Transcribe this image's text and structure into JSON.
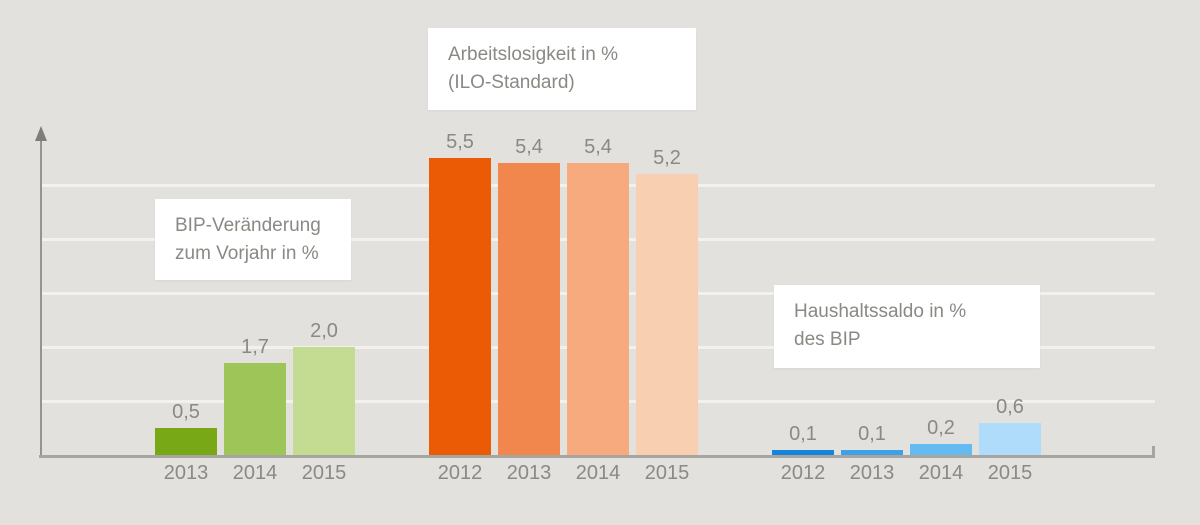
{
  "chart_data": {
    "type": "bar",
    "title": "",
    "xlabel": "",
    "ylabel": "",
    "ylim": [
      0,
      6
    ],
    "grid": {
      "visible": true,
      "step": 1,
      "lines_at": [
        1,
        2,
        3,
        4,
        5
      ]
    },
    "legend_position": "none",
    "groups": [
      {
        "id": "bip",
        "annotation": "BIP-Veränderung\nzum Vorjahr in %",
        "categories": [
          "2013",
          "2014",
          "2015"
        ],
        "values": [
          0.5,
          1.7,
          2.0
        ],
        "display_values": [
          "0,5",
          "1,7",
          "2,0"
        ],
        "bar_colors": [
          "#78a816",
          "#9dc558",
          "#c3dc92"
        ]
      },
      {
        "id": "arbeitslosigkeit",
        "annotation": "Arbeitslosigkeit in %\n(ILO-Standard)",
        "categories": [
          "2012",
          "2013",
          "2014",
          "2015"
        ],
        "values": [
          5.5,
          5.4,
          5.4,
          5.2
        ],
        "display_values": [
          "5,5",
          "5,4",
          "5,4",
          "5,2"
        ],
        "bar_colors": [
          "#eb5b06",
          "#f1874d",
          "#f6aa7d",
          "#f9cfb2"
        ]
      },
      {
        "id": "haushaltssaldo",
        "annotation": "Haushaltssaldo in %\ndes BIP",
        "categories": [
          "2012",
          "2013",
          "2014",
          "2015"
        ],
        "values": [
          0.1,
          0.1,
          0.2,
          0.6
        ],
        "display_values": [
          "0,1",
          "0,1",
          "0,2",
          "0,6"
        ],
        "bar_colors": [
          "#1585dc",
          "#3ba1e8",
          "#63bbf2",
          "#aedcfa"
        ]
      }
    ]
  },
  "colors": {
    "background": "#e3e1de",
    "gridline": "#f2f1ee",
    "y_axis": "#96948e",
    "x_axis": "#a7a5a0",
    "label_text": "#8a8984",
    "annotation_background": "#ffffff"
  }
}
